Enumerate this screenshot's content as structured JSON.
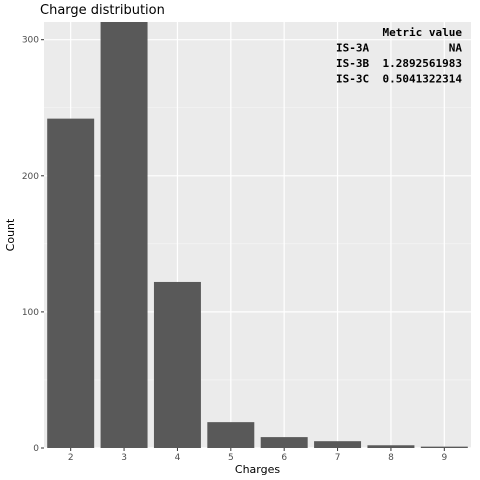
{
  "chart_data": {
    "type": "bar",
    "title": "Charge distribution",
    "xlabel": "Charges",
    "ylabel": "Count",
    "categories": [
      "2",
      "3",
      "4",
      "5",
      "6",
      "7",
      "8",
      "9"
    ],
    "values": [
      242,
      313,
      122,
      19,
      8,
      5,
      2,
      1
    ],
    "ylim": [
      0,
      313
    ],
    "yticks": [
      0,
      100,
      200,
      300
    ],
    "bar_color": "#595959",
    "panel_color": "#ebebeb",
    "grid": true,
    "legend": "none",
    "annotation_table": {
      "header": [
        "Metric",
        "value"
      ],
      "rows": [
        [
          "IS-3A",
          "NA"
        ],
        [
          "IS-3B",
          "1.2892561983"
        ],
        [
          "IS-3C",
          "0.5041322314"
        ]
      ]
    }
  }
}
